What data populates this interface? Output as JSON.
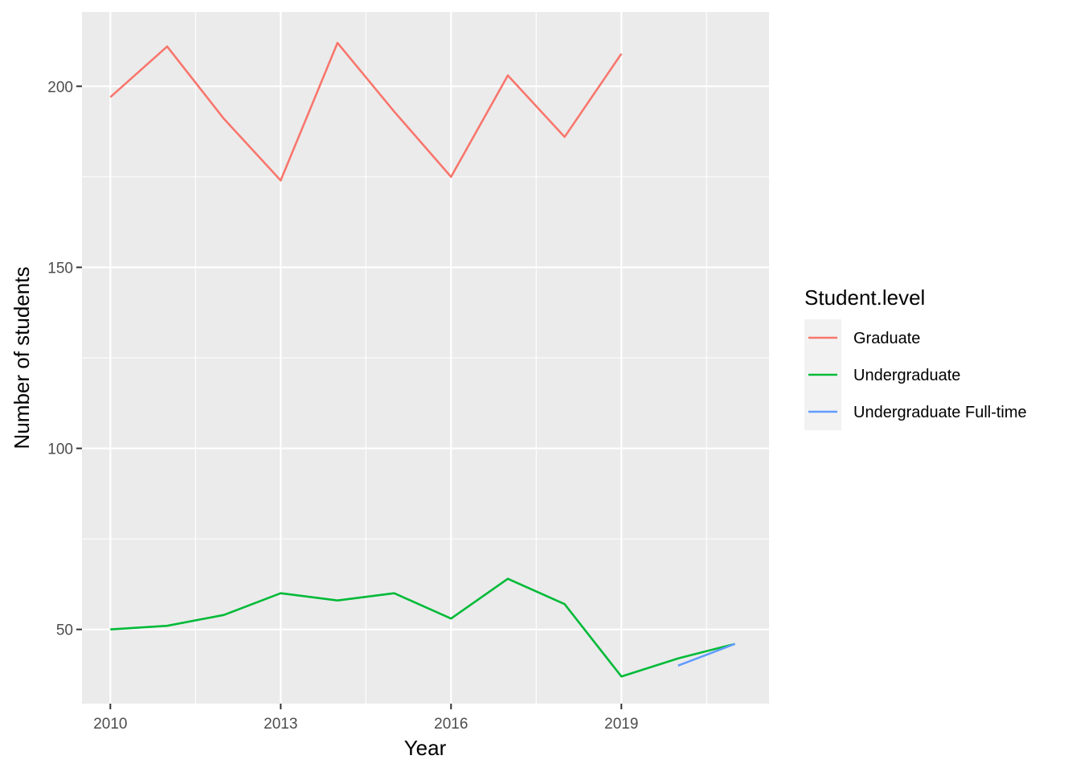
{
  "chart_data": {
    "type": "line",
    "xlabel": "Year",
    "ylabel": "Number of students",
    "xlim": [
      2009.5,
      2021.6
    ],
    "ylim": [
      29.5,
      220.5
    ],
    "xticks": [
      2010,
      2013,
      2016,
      2019
    ],
    "xticks_minor": [
      2011.5,
      2014.5,
      2017.5,
      2020.5
    ],
    "yticks": [
      50,
      100,
      150,
      200
    ],
    "yticks_minor": [
      75,
      125,
      175
    ],
    "grid": true,
    "legend": {
      "title": "Student.level",
      "position": "right"
    },
    "series": [
      {
        "name": "Graduate",
        "color": "#F8766D",
        "x": [
          2010,
          2011,
          2012,
          2013,
          2014,
          2015,
          2016,
          2017,
          2018,
          2019
        ],
        "y": [
          197,
          211,
          191,
          174,
          212,
          193,
          175,
          203,
          186,
          209
        ]
      },
      {
        "name": "Undergraduate",
        "color": "#00BA38",
        "x": [
          2010,
          2011,
          2012,
          2013,
          2014,
          2015,
          2016,
          2017,
          2018,
          2019,
          2020,
          2021
        ],
        "y": [
          50,
          51,
          54,
          60,
          58,
          60,
          53,
          64,
          57,
          37,
          42,
          46
        ]
      },
      {
        "name": "Undergraduate Full-time",
        "color": "#619CFF",
        "x": [
          2020,
          2021
        ],
        "y": [
          40,
          46
        ]
      }
    ]
  }
}
